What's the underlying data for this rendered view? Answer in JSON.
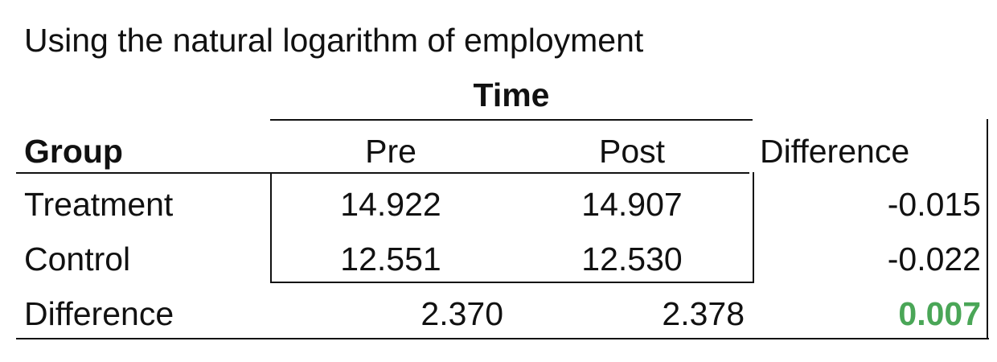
{
  "title": "Using the natural logarithm of employment",
  "header": {
    "time": "Time",
    "group": "Group",
    "pre": "Pre",
    "post": "Post",
    "difference": "Difference"
  },
  "rows": [
    {
      "label": "Treatment",
      "pre": "14.922",
      "post": "14.907",
      "difference": "-0.015"
    },
    {
      "label": "Control",
      "pre": "12.551",
      "post": "12.530",
      "difference": "-0.022"
    }
  ],
  "difference_row": {
    "label": "Difference",
    "pre": "2.370",
    "post": "2.378",
    "difference": "0.007"
  },
  "colors": {
    "highlight": "#4aa657"
  }
}
